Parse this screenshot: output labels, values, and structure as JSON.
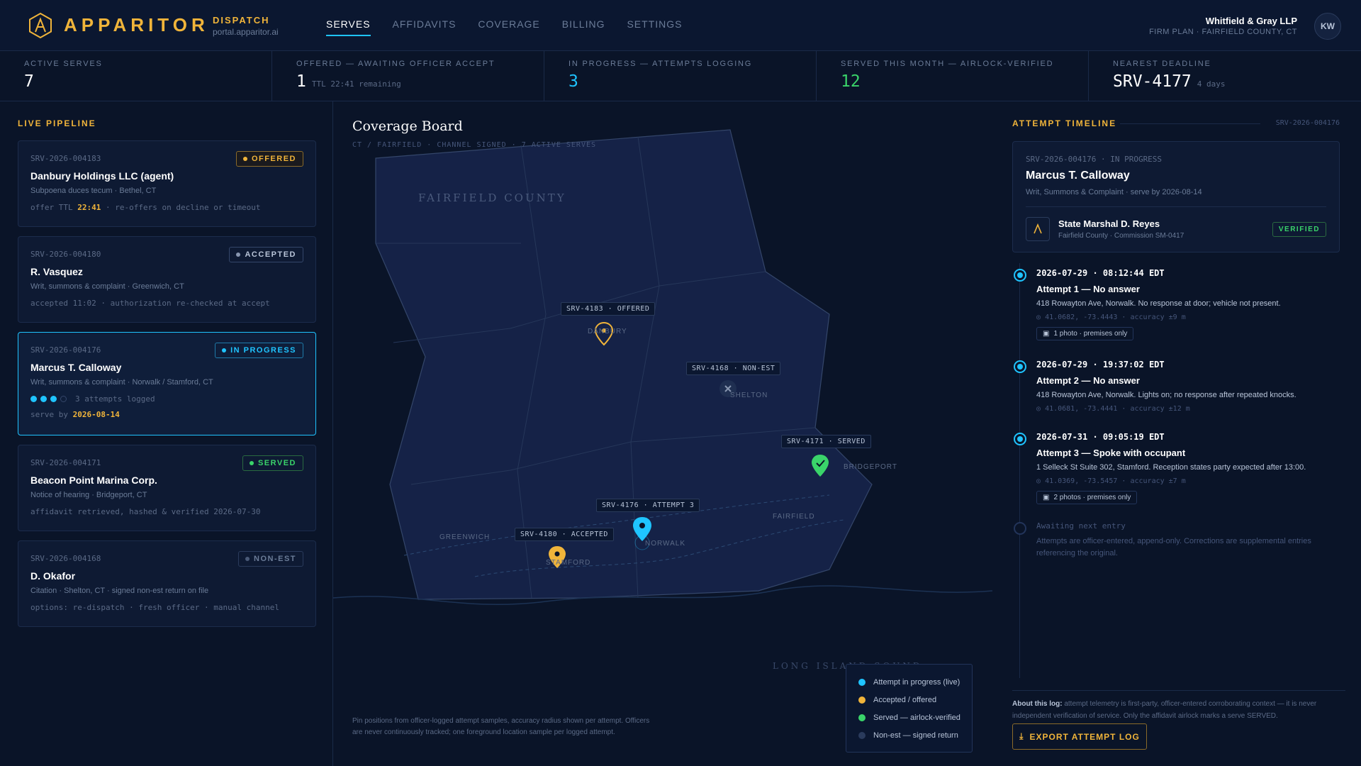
{
  "header": {
    "brand": "APPARITOR",
    "section": "DISPATCH",
    "url": "portal.apparitor.ai",
    "nav": [
      "SERVES",
      "AFFIDAVITS",
      "COVERAGE",
      "BILLING",
      "SETTINGS"
    ],
    "firm_name": "Whitfield & Gray LLP",
    "firm_plan": "FIRM PLAN · FAIRFIELD COUNTY, CT",
    "avatar_initials": "KW"
  },
  "stats": [
    {
      "label": "ACTIVE SERVES",
      "value": "7",
      "sub": ""
    },
    {
      "label": "OFFERED — AWAITING OFFICER ACCEPT",
      "value": "1",
      "sub": "TTL 22:41 remaining"
    },
    {
      "label": "IN PROGRESS — ATTEMPTS LOGGING",
      "value": "3",
      "sub": ""
    },
    {
      "label": "SERVED THIS MONTH — AIRLOCK-VERIFIED",
      "value": "12",
      "sub": ""
    },
    {
      "label": "NEAREST DEADLINE",
      "value": "SRV-4177",
      "sub": "4 days"
    }
  ],
  "pipeline": {
    "title": "LIVE PIPELINE",
    "cards": [
      {
        "id": "SRV-2026-004183",
        "badge": "OFFERED",
        "name": "Danbury Holdings LLC (agent)",
        "desc": "Subpoena duces tecum · Bethel, CT",
        "foot_pre": "offer TTL ",
        "foot_hl": "22:41",
        "foot_post": " · re-offers on decline or timeout"
      },
      {
        "id": "SRV-2026-004180",
        "badge": "ACCEPTED",
        "name": "R. Vasquez",
        "desc": "Writ, summons & complaint · Greenwich, CT",
        "foot": "accepted 11:02 · authorization re-checked at accept"
      },
      {
        "id": "SRV-2026-004176",
        "badge": "IN PROGRESS",
        "name": "Marcus T. Calloway",
        "desc": "Writ, summons & complaint · Norwalk / Stamford, CT",
        "attempts": "3 attempts logged",
        "foot_pre": "serve by ",
        "foot_hl": "2026-08-14"
      },
      {
        "id": "SRV-2026-004171",
        "badge": "SERVED",
        "name": "Beacon Point Marina Corp.",
        "desc": "Notice of hearing · Bridgeport, CT",
        "foot": "affidavit retrieved, hashed & verified 2026-07-30"
      },
      {
        "id": "SRV-2026-004168",
        "badge": "NON-EST",
        "name": "D. Okafor",
        "desc": "Citation · Shelton, CT · signed non-est return on file",
        "foot": "options: re-dispatch · fresh officer · manual channel"
      }
    ]
  },
  "map": {
    "title": "Coverage Board",
    "subtitle": "CT / FAIRFIELD · CHANNEL SIGNED · 7 ACTIVE SERVES",
    "county": "FAIRFIELD COUNTY",
    "sound": "LONG ISLAND SOUND",
    "towns": [
      "DANBURY",
      "SHELTON",
      "BRIDGEPORT",
      "FAIRFIELD",
      "NORWALK",
      "GREENWICH",
      "STAMFORD"
    ],
    "pins": [
      {
        "label": "SRV-4183 · OFFERED"
      },
      {
        "label": "SRV-4168 · NON-EST"
      },
      {
        "label": "SRV-4171 · SERVED"
      },
      {
        "label": "SRV-4176 · ATTEMPT 3"
      },
      {
        "label": "SRV-4180 · ACCEPTED"
      }
    ],
    "legend": [
      "Attempt in progress (live)",
      "Accepted / offered",
      "Served — airlock-verified",
      "Non-est — signed return"
    ],
    "note": "Pin positions from officer-logged attempt samples, accuracy radius shown per attempt. Officers are never continuously tracked; one foreground location sample per logged attempt.",
    "colors": {
      "live": "#1fc4ff",
      "offered": "#f0b43a",
      "served": "#3ad46a",
      "nonest": "#2a3b5c"
    }
  },
  "timeline": {
    "title": "ATTEMPT TIMELINE",
    "case_id": "SRV-2026-004176",
    "case_status_line": "SRV-2026-004176 · IN PROGRESS",
    "case_name": "Marcus T. Calloway",
    "case_desc": "Writ, Summons & Complaint · serve by 2026-08-14",
    "officer_name": "State Marshal D. Reyes",
    "officer_comm": "Fairfield County · Commission SM-0417",
    "officer_badge": "VERIFIED",
    "entries": [
      {
        "ts": "2026-07-29 · 08:12:44 EDT",
        "title": "Attempt 1 — No answer",
        "desc": "418 Rowayton Ave, Norwalk. No response at door; vehicle not present.",
        "geo": "41.0682, -73.4443 · accuracy ±9 m",
        "photo": "1 photo · premises only"
      },
      {
        "ts": "2026-07-29 · 19:37:02 EDT",
        "title": "Attempt 2 — No answer",
        "desc": "418 Rowayton Ave, Norwalk. Lights on; no response after repeated knocks.",
        "geo": "41.0681, -73.4441 · accuracy ±12 m",
        "photo": ""
      },
      {
        "ts": "2026-07-31 · 09:05:19 EDT",
        "title": "Attempt 3 — Spoke with occupant",
        "desc": "1 Selleck St Suite 302, Stamford. Reception states party expected after 13:00.",
        "geo": "41.0369, -73.5457 · accuracy ±7 m",
        "photo": "2 photos · premises only"
      }
    ],
    "await_title": "Awaiting next entry",
    "await_note": "Attempts are officer-entered, append-only. Corrections are supplemental entries referencing the original.",
    "about_label": "About this log:",
    "about_text": " attempt telemetry is first-party, officer-entered corroborating context — it is never independent verification of service. Only the affidavit airlock marks a serve SERVED.",
    "export_label": "EXPORT ATTEMPT LOG"
  }
}
